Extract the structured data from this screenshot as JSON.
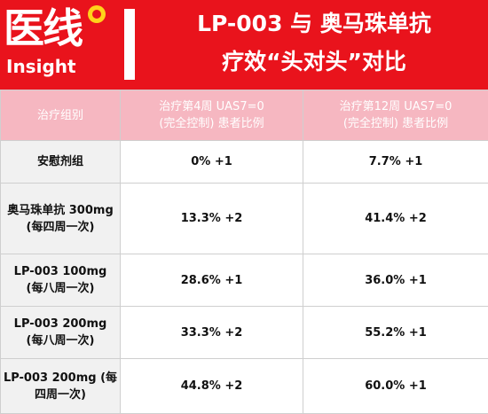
{
  "logo": {
    "main": "医线",
    "sub": "Insight"
  },
  "title": {
    "line1": "LP-003 与 奥马珠单抗",
    "line2": "疗效“头对头”对比"
  },
  "table": {
    "headers": [
      {
        "line1": "治疗组别",
        "line2": ""
      },
      {
        "line1": "治疗第4周 UAS7=0",
        "line2": "(完全控制) 患者比例"
      },
      {
        "line1": "治疗第12周 UAS7=0",
        "line2": "(完全控制) 患者比例"
      }
    ],
    "rows": [
      {
        "group": {
          "line1": "安慰剂组",
          "line2": ""
        },
        "week4": "0% +1",
        "week12": "7.7% +1"
      },
      {
        "group": {
          "line1": "奥马珠单抗 300mg",
          "line2": "(每四周一次)"
        },
        "week4": "13.3% +2",
        "week12": "41.4% +2"
      },
      {
        "group": {
          "line1": "LP-003 100mg",
          "line2": "(每八周一次)"
        },
        "week4": "28.6% +1",
        "week12": "36.0% +1"
      },
      {
        "group": {
          "line1": "LP-003 200mg",
          "line2": "(每八周一次)"
        },
        "week4": "33.3% +2",
        "week12": "55.2% +1"
      },
      {
        "group": {
          "line1": "LP-003 200mg (每",
          "line2": "四周一次)"
        },
        "week4": "44.8% +2",
        "week12": "60.0% +1"
      }
    ]
  },
  "colors": {
    "header_red": "#e9131c",
    "table_header_pink": "#f6b7c1",
    "label_cell_gray": "#f1f1f1",
    "logo_dot_yellow": "#ffd21a"
  }
}
